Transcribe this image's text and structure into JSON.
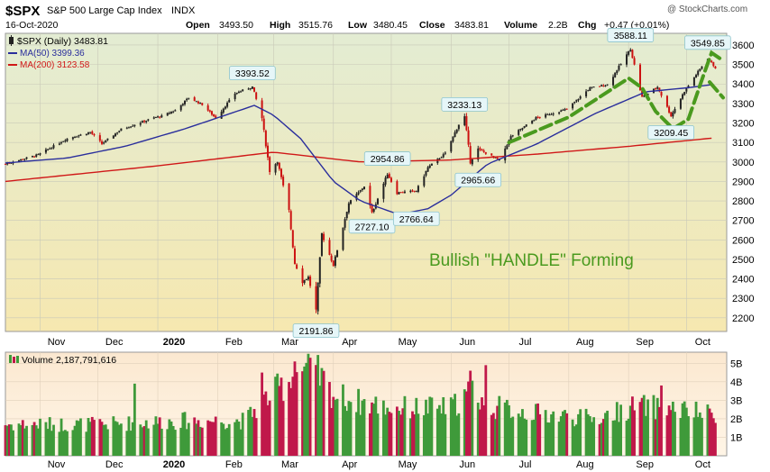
{
  "header": {
    "symbol": "$SPX",
    "name": "S&P 500 Large Cap Index",
    "exchange": "INDX",
    "date": "16-Oct-2020",
    "copyright": "@ StockCharts.com",
    "quote": [
      {
        "label": "Open",
        "value": "3493.50"
      },
      {
        "label": "High",
        "value": "3515.76"
      },
      {
        "label": "Low",
        "value": "3480.45"
      },
      {
        "label": "Close",
        "value": "3483.81"
      },
      {
        "label": "Volume",
        "value": "2.2B"
      },
      {
        "label": "Chg",
        "value": "+0.47 (+0.01%)"
      }
    ]
  },
  "legend": {
    "price": "$SPX (Daily) 3483.81",
    "ma50": "MA(50) 3399.36",
    "ma200": "MA(200) 3123.58",
    "volume": "Volume 2,187,791,616"
  },
  "annotation": {
    "text": "Bullish \"HANDLE\" Forming",
    "color": "#4a9a1e"
  },
  "colors": {
    "up": "#222222",
    "down": "#cc1111",
    "ma50": "#2a2e9c",
    "ma200": "#d01818",
    "vol_up": "#3f9a3a",
    "vol_down": "#c0184a",
    "handle": "#4a9a1e"
  },
  "chart_data": [
    {
      "type": "candlestick",
      "title": "$SPX (Daily)",
      "x_ticks": [
        "Nov",
        "Dec",
        "2020",
        "Feb",
        "Mar",
        "Apr",
        "May",
        "Jun",
        "Jul",
        "Aug",
        "Sep",
        "Oct"
      ],
      "y_ticks": [
        2200,
        2300,
        2400,
        2500,
        2600,
        2700,
        2800,
        2900,
        3000,
        3100,
        3200,
        3300,
        3400,
        3500,
        3600
      ],
      "ylim": [
        2130,
        3660
      ],
      "grid": true,
      "close_path": [
        [
          "2019-10-14",
          2990
        ],
        [
          "2019-10-31",
          3037
        ],
        [
          "2019-11-15",
          3120
        ],
        [
          "2019-11-27",
          3153
        ],
        [
          "2019-12-03",
          3093
        ],
        [
          "2019-12-13",
          3168
        ],
        [
          "2019-12-31",
          3230
        ],
        [
          "2020-01-03",
          3235
        ],
        [
          "2020-01-10",
          3265
        ],
        [
          "2020-01-17",
          3330
        ],
        [
          "2020-01-24",
          3295
        ],
        [
          "2020-01-31",
          3225
        ],
        [
          "2020-02-10",
          3352
        ],
        [
          "2020-02-19",
          3386
        ],
        [
          "2020-02-24",
          3225
        ],
        [
          "2020-02-28",
          2954
        ],
        [
          "2020-03-03",
          3003
        ],
        [
          "2020-03-09",
          2746
        ],
        [
          "2020-03-12",
          2480
        ],
        [
          "2020-03-16",
          2386
        ],
        [
          "2020-03-19",
          2409
        ],
        [
          "2020-03-23",
          2237
        ],
        [
          "2020-03-26",
          2630
        ],
        [
          "2020-04-01",
          2470
        ],
        [
          "2020-04-09",
          2789
        ],
        [
          "2020-04-17",
          2875
        ],
        [
          "2020-04-21",
          2737
        ],
        [
          "2020-04-29",
          2939
        ],
        [
          "2020-05-04",
          2842
        ],
        [
          "2020-05-14",
          2852
        ],
        [
          "2020-05-20",
          2972
        ],
        [
          "2020-05-29",
          3044
        ],
        [
          "2020-06-05",
          3193
        ],
        [
          "2020-06-08",
          3232
        ],
        [
          "2020-06-11",
          3002
        ],
        [
          "2020-06-15",
          3066
        ],
        [
          "2020-06-26",
          3009
        ],
        [
          "2020-07-02",
          3130
        ],
        [
          "2020-07-15",
          3226
        ],
        [
          "2020-07-31",
          3271
        ],
        [
          "2020-08-12",
          3380
        ],
        [
          "2020-08-21",
          3397
        ],
        [
          "2020-09-02",
          3580
        ],
        [
          "2020-09-08",
          3331
        ],
        [
          "2020-09-16",
          3385
        ],
        [
          "2020-09-23",
          3237
        ],
        [
          "2020-09-30",
          3363
        ],
        [
          "2020-10-12",
          3534
        ],
        [
          "2020-10-16",
          3483
        ]
      ],
      "ma50": [
        [
          "2019-10-14",
          2995
        ],
        [
          "2019-11-15",
          3020
        ],
        [
          "2019-12-15",
          3080
        ],
        [
          "2020-01-15",
          3170
        ],
        [
          "2020-02-20",
          3290
        ],
        [
          "2020-03-01",
          3240
        ],
        [
          "2020-03-15",
          3120
        ],
        [
          "2020-04-01",
          2900
        ],
        [
          "2020-04-15",
          2800
        ],
        [
          "2020-05-05",
          2730
        ],
        [
          "2020-05-20",
          2760
        ],
        [
          "2020-06-01",
          2830
        ],
        [
          "2020-06-20",
          2990
        ],
        [
          "2020-07-15",
          3090
        ],
        [
          "2020-08-15",
          3250
        ],
        [
          "2020-09-10",
          3360
        ],
        [
          "2020-10-01",
          3380
        ],
        [
          "2020-10-16",
          3399
        ]
      ],
      "ma200": [
        [
          "2019-10-14",
          2900
        ],
        [
          "2020-01-01",
          2980
        ],
        [
          "2020-03-01",
          3050
        ],
        [
          "2020-04-15",
          3000
        ],
        [
          "2020-06-01",
          3010
        ],
        [
          "2020-07-15",
          3040
        ],
        [
          "2020-09-01",
          3080
        ],
        [
          "2020-10-16",
          3124
        ]
      ],
      "handle_path": [
        [
          "2020-07-01",
          3100
        ],
        [
          "2020-08-01",
          3230
        ],
        [
          "2020-09-01",
          3430
        ],
        [
          "2020-09-08",
          3380
        ],
        [
          "2020-09-15",
          3260
        ],
        [
          "2020-09-24",
          3170
        ],
        [
          "2020-10-02",
          3220
        ],
        [
          "2020-10-10",
          3450
        ],
        [
          "2020-10-14",
          3560
        ],
        [
          "2020-10-20",
          3520
        ]
      ],
      "handle_down": [
        [
          "2020-10-13",
          3410
        ],
        [
          "2020-10-20",
          3330
        ]
      ],
      "callouts": [
        {
          "label": "3393.52",
          "x": "2020-02-19",
          "y": 3393.52,
          "pos": "above"
        },
        {
          "label": "2191.86",
          "x": "2020-03-23",
          "y": 2191.86,
          "pos": "below"
        },
        {
          "label": "2727.10",
          "x": "2020-04-21",
          "y": 2727.1,
          "pos": "below"
        },
        {
          "label": "2954.86",
          "x": "2020-04-29",
          "y": 2954.86,
          "pos": "above"
        },
        {
          "label": "2766.64",
          "x": "2020-05-14",
          "y": 2766.64,
          "pos": "below"
        },
        {
          "label": "3233.13",
          "x": "2020-06-08",
          "y": 3233.13,
          "pos": "above"
        },
        {
          "label": "2965.66",
          "x": "2020-06-15",
          "y": 2965.66,
          "pos": "below"
        },
        {
          "label": "3588.11",
          "x": "2020-09-02",
          "y": 3588.11,
          "pos": "above"
        },
        {
          "label": "3209.45",
          "x": "2020-09-23",
          "y": 3209.45,
          "pos": "below"
        },
        {
          "label": "3549.85",
          "x": "2020-10-12",
          "y": 3549.85,
          "pos": "above"
        }
      ]
    },
    {
      "type": "bar",
      "title": "Volume",
      "y_ticks": [
        "1B",
        "2B",
        "3B",
        "4B",
        "5B"
      ],
      "ylim": [
        0,
        5.6
      ],
      "volume_path": [
        [
          "2019-10-14",
          1.7
        ],
        [
          "2019-12-01",
          1.7
        ],
        [
          "2020-01-15",
          1.9
        ],
        [
          "2020-02-15",
          1.9
        ],
        [
          "2020-02-25",
          3.0
        ],
        [
          "2020-03-01",
          3.4
        ],
        [
          "2020-03-10",
          4.2
        ],
        [
          "2020-03-16",
          4.8
        ],
        [
          "2020-03-24",
          4.4
        ],
        [
          "2020-04-01",
          3.3
        ],
        [
          "2020-04-15",
          2.9
        ],
        [
          "2020-05-01",
          2.6
        ],
        [
          "2020-06-01",
          2.6
        ],
        [
          "2020-06-12",
          3.6
        ],
        [
          "2020-06-20",
          2.7
        ],
        [
          "2020-07-15",
          2.3
        ],
        [
          "2020-08-15",
          2.0
        ],
        [
          "2020-09-05",
          2.7
        ],
        [
          "2020-09-20",
          2.6
        ],
        [
          "2020-10-16",
          2.19
        ]
      ],
      "volume_spikes": [
        [
          "2020-02-24",
          4.5
        ],
        [
          "2020-03-12",
          5.1
        ],
        [
          "2020-03-20",
          5.3
        ],
        [
          "2020-06-11",
          4.6
        ],
        [
          "2020-06-19",
          4.9
        ],
        [
          "2020-09-18",
          3.8
        ],
        [
          "2019-12-20",
          3.9
        ]
      ]
    }
  ]
}
